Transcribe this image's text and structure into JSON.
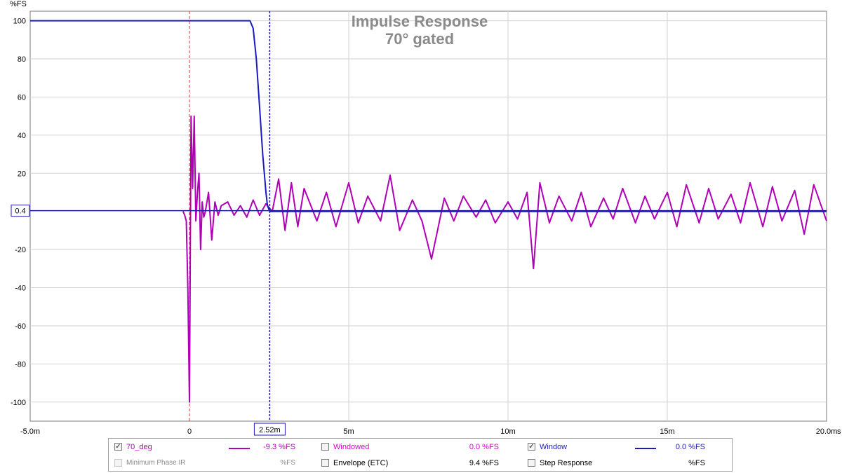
{
  "chart_data": {
    "type": "line",
    "title": "Impulse Response",
    "subtitle": "70° gated",
    "ylabel": "%FS",
    "xlabel": "s",
    "xlim": [
      -5.0,
      20.0
    ],
    "ylim": [
      -110,
      105
    ],
    "y_ticks": [
      100,
      80,
      60,
      40,
      20,
      -20,
      -40,
      -60,
      -80,
      -100
    ],
    "y_tick_labels": [
      "100",
      "80",
      "60",
      "40",
      "20",
      "-20",
      "-40",
      "-60",
      "-80",
      "-100"
    ],
    "x_ticks": [
      -5,
      0,
      5,
      10,
      15,
      20
    ],
    "x_tick_labels": [
      "-5.0m",
      "0",
      "5m",
      "10m",
      "15m",
      "20.0m"
    ],
    "x_tick_unit_suffix": "s",
    "grid": true,
    "cursor": {
      "x": 2.52,
      "x_label": "2.52m",
      "y": 0.4,
      "y_label": "0.4"
    },
    "reference_line_x": 0,
    "series": [
      {
        "name": "70_deg",
        "color": "#b000b5",
        "x": [
          -0.2,
          -0.15,
          -0.1,
          -0.05,
          0.0,
          0.05,
          0.1,
          0.15,
          0.2,
          0.25,
          0.3,
          0.35,
          0.4,
          0.45,
          0.5,
          0.6,
          0.7,
          0.8,
          0.9,
          1.0,
          1.2,
          1.4,
          1.6,
          1.8,
          2.0,
          2.2,
          2.4,
          2.6,
          2.8,
          3.0,
          3.2,
          3.4,
          3.6,
          4.0,
          4.3,
          4.6,
          5.0,
          5.3,
          5.6,
          6.0,
          6.3,
          6.6,
          7.0,
          7.3,
          7.6,
          8.0,
          8.3,
          8.6,
          9.0,
          9.3,
          9.6,
          10.0,
          10.3,
          10.6,
          10.8,
          11.0,
          11.3,
          11.6,
          12.0,
          12.3,
          12.6,
          13.0,
          13.3,
          13.6,
          14.0,
          14.3,
          14.6,
          15.0,
          15.3,
          15.6,
          16.0,
          16.3,
          16.6,
          17.0,
          17.3,
          17.6,
          18.0,
          18.3,
          18.6,
          19.0,
          19.3,
          19.6,
          20.0
        ],
        "values": [
          0,
          -2,
          -5,
          -40,
          -100,
          50,
          12,
          50,
          -5,
          10,
          20,
          -20,
          5,
          -3,
          0,
          10,
          -15,
          5,
          -2,
          3,
          5,
          -2,
          3,
          -3,
          6,
          -2,
          4,
          0,
          17,
          -10,
          15,
          -8,
          12,
          -5,
          10,
          -8,
          15,
          -6,
          8,
          -5,
          19,
          -10,
          6,
          -5,
          -25,
          7,
          -5,
          8,
          -3,
          6,
          -6,
          5,
          -4,
          10,
          -30,
          15,
          -6,
          8,
          -5,
          10,
          -8,
          7,
          -4,
          12,
          -6,
          8,
          -4,
          10,
          -8,
          14,
          -6,
          12,
          -4,
          9,
          -6,
          15,
          -8,
          13,
          -5,
          11,
          -12,
          14,
          -5
        ]
      },
      {
        "name": "Window",
        "color": "#1a1abf",
        "x": [
          -5.0,
          1.9,
          2.0,
          2.1,
          2.2,
          2.3,
          2.4,
          2.45,
          2.52,
          20.0
        ],
        "values": [
          100,
          100,
          96,
          80,
          55,
          30,
          10,
          3,
          0,
          0
        ]
      }
    ]
  },
  "legend": {
    "items": [
      {
        "label": "70_deg",
        "value": "-9.3 %FS",
        "checked": true,
        "enabled": true,
        "color": "#b000b5",
        "check_glyph": "✓"
      },
      {
        "label": "Windowed",
        "value": "0.0 %FS",
        "checked": false,
        "enabled": true,
        "color": "#d400d4",
        "check_glyph": ""
      },
      {
        "label": "Window",
        "value": "0.0 %FS",
        "checked": true,
        "enabled": true,
        "color": "#1a1abf",
        "check_glyph": "✓"
      },
      {
        "label": "Minimum Phase IR",
        "value": "%FS",
        "checked": false,
        "enabled": false,
        "color": "#8a8a8a",
        "check_glyph": ""
      },
      {
        "label": "Envelope (ETC)",
        "value": "9.4 %FS",
        "checked": false,
        "enabled": true,
        "color": "#000000",
        "check_glyph": ""
      },
      {
        "label": "Step Response",
        "value": "%FS",
        "checked": false,
        "enabled": true,
        "color": "#000000",
        "check_glyph": ""
      }
    ]
  }
}
